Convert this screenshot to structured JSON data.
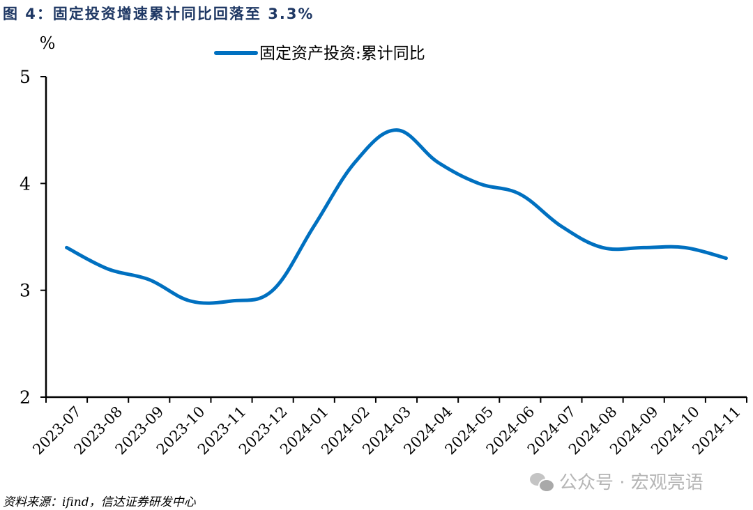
{
  "figure": {
    "title": "图 4：固定投资增速累计同比回落至 3.3%",
    "source": "资料来源：ifind，信达证券研发中心",
    "watermark": "公众号 · 宏观亮语"
  },
  "colors": {
    "line": "#0070c0",
    "title": "#1f3864",
    "axis": "#000000"
  },
  "chart_data": {
    "type": "line",
    "title": "图 4：固定投资增速累计同比回落至 3.3%",
    "xlabel": "",
    "ylabel": "%",
    "ylim": [
      2,
      5
    ],
    "yticks": [
      2,
      3,
      4,
      5
    ],
    "grid": false,
    "legend_position": "top",
    "categories": [
      "2023-07",
      "2023-08",
      "2023-09",
      "2023-10",
      "2023-11",
      "2023-12",
      "2024-01",
      "2024-02",
      "2024-03",
      "2024-04",
      "2024-05",
      "2024-06",
      "2024-07",
      "2024-08",
      "2024-09",
      "2024-10",
      "2024-11"
    ],
    "series": [
      {
        "name": "固定资产投资:累计同比",
        "values": [
          3.4,
          3.2,
          3.1,
          2.9,
          2.9,
          3.0,
          3.6,
          4.2,
          4.5,
          4.2,
          4.0,
          3.9,
          3.6,
          3.4,
          3.4,
          3.4,
          3.3
        ]
      }
    ]
  }
}
